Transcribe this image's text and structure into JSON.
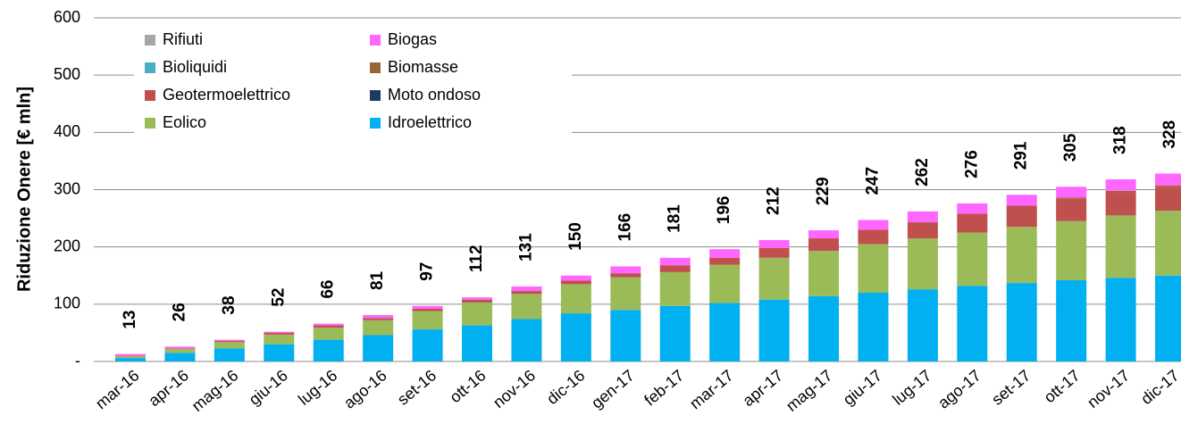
{
  "chart_data": {
    "type": "stacked-bar",
    "y_label": "Riduzione Onere [€ mln]",
    "categories": [
      "mar-16",
      "apr-16",
      "mag-16",
      "giu-16",
      "lug-16",
      "ago-16",
      "set-16",
      "ott-16",
      "nov-16",
      "dic-16",
      "gen-17",
      "feb-17",
      "mar-17",
      "apr-17",
      "mag-17",
      "giu-17",
      "lug-17",
      "ago-17",
      "set-17",
      "ott-17",
      "nov-17",
      "dic-17"
    ],
    "series": [
      {
        "name": "Idroelettrico",
        "color": "#00b0f0",
        "values": [
          6,
          15,
          23,
          30,
          38,
          46,
          56,
          63,
          74,
          84,
          90,
          97,
          102,
          108,
          114,
          120,
          126,
          132,
          137,
          142,
          146,
          150
        ]
      },
      {
        "name": "Eolico",
        "color": "#9bbb59",
        "values": [
          3,
          7,
          11,
          17,
          21,
          26,
          32,
          40,
          44,
          51,
          57,
          59,
          67,
          73,
          79,
          85,
          89,
          93,
          98,
          103,
          109,
          113
        ]
      },
      {
        "name": "Moto ondoso",
        "color": "#1f3864",
        "values": [
          0,
          0,
          0,
          0,
          0,
          0,
          0,
          0,
          0,
          0,
          0,
          0,
          0,
          0,
          0,
          0,
          0,
          0,
          0,
          0,
          0,
          0
        ]
      },
      {
        "name": "Geotermoelettrico",
        "color": "#c0504d",
        "values": [
          1,
          1,
          2,
          3,
          4,
          4,
          4,
          5,
          5,
          6,
          7,
          12,
          12,
          17,
          22,
          25,
          28,
          33,
          37,
          39,
          41,
          42
        ]
      },
      {
        "name": "Biomasse",
        "color": "#996633",
        "values": [
          0,
          0,
          0,
          0,
          0,
          0,
          0,
          0,
          0,
          0,
          0,
          0,
          0,
          0,
          0,
          0,
          0,
          0,
          0,
          2,
          2,
          2
        ]
      },
      {
        "name": "Bioliquidi",
        "color": "#4bacc6",
        "values": [
          0,
          0,
          0,
          0,
          0,
          0,
          0,
          0,
          0,
          0,
          0,
          0,
          0,
          0,
          0,
          0,
          0,
          0,
          0,
          0,
          0,
          0
        ]
      },
      {
        "name": "Biogas",
        "color": "#ff66ff",
        "values": [
          3,
          3,
          2,
          2,
          3,
          5,
          5,
          4,
          8,
          9,
          12,
          13,
          15,
          14,
          14,
          17,
          19,
          18,
          19,
          19,
          20,
          21
        ]
      },
      {
        "name": "Rifiuti",
        "color": "#a6a6a6",
        "values": [
          0,
          0,
          0,
          0,
          0,
          0,
          0,
          0,
          0,
          0,
          0,
          0,
          0,
          0,
          0,
          0,
          0,
          0,
          0,
          0,
          0,
          0
        ]
      }
    ],
    "totals": [
      13,
      26,
      38,
      52,
      66,
      81,
      97,
      112,
      131,
      150,
      166,
      181,
      196,
      212,
      229,
      247,
      262,
      276,
      291,
      305,
      318,
      328
    ],
    "ylim": [
      0,
      600
    ],
    "yticks": [
      {
        "value": 0,
        "label": "-"
      },
      100,
      200,
      300,
      400,
      500,
      600
    ],
    "grid": true
  }
}
